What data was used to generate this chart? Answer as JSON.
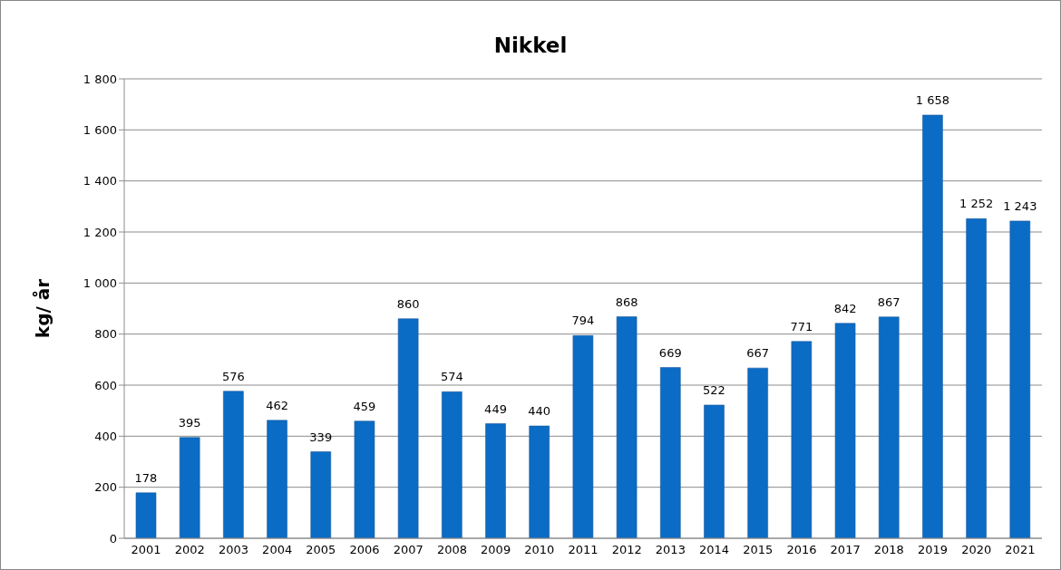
{
  "chart_data": {
    "type": "bar",
    "title": "Nikkel",
    "ylabel": "kg/ år",
    "categories": [
      "2001",
      "2002",
      "2003",
      "2004",
      "2005",
      "2006",
      "2007",
      "2008",
      "2009",
      "2010",
      "2011",
      "2012",
      "2013",
      "2014",
      "2015",
      "2016",
      "2017",
      "2018",
      "2019",
      "2020",
      "2021"
    ],
    "values": [
      178,
      395,
      576,
      462,
      339,
      459,
      860,
      574,
      449,
      440,
      794,
      868,
      669,
      522,
      667,
      771,
      842,
      867,
      1658,
      1252,
      1243
    ],
    "value_labels": [
      "178",
      "395",
      "576",
      "462",
      "339",
      "459",
      "860",
      "574",
      "449",
      "440",
      "794",
      "868",
      "669",
      "522",
      "667",
      "771",
      "842",
      "867",
      "1 658",
      "1 252",
      "1 243"
    ],
    "color": "#0a6cc4",
    "ylim": [
      0,
      1800
    ],
    "yticks": [
      0,
      200,
      400,
      600,
      800,
      {
        "value": 1000,
        "label": "1 000"
      },
      {
        "value": 1200,
        "label": "1 200"
      },
      {
        "value": 1400,
        "label": "1 400"
      },
      {
        "value": 1600,
        "label": "1 600"
      },
      {
        "value": 1800,
        "label": "1 800"
      }
    ],
    "grid": "y",
    "legend": false
  }
}
